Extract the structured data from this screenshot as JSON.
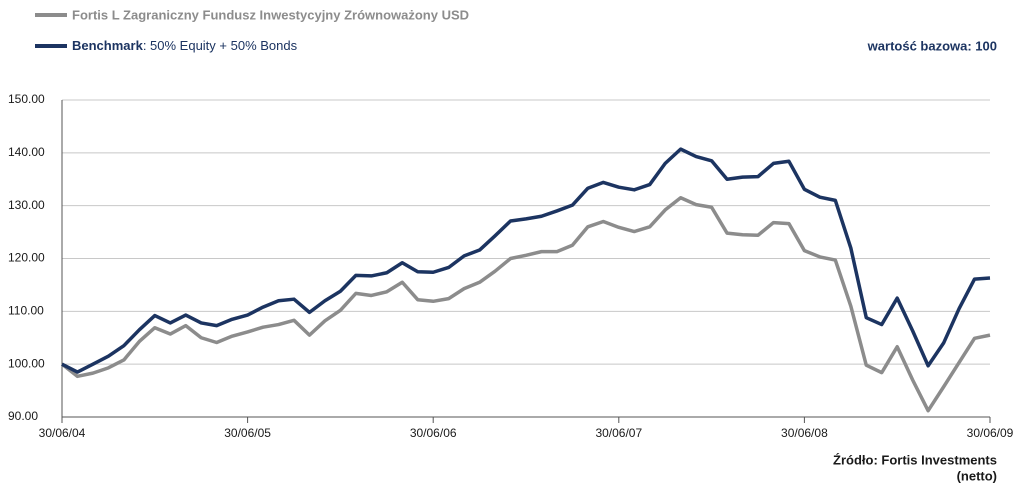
{
  "chart_data": {
    "type": "line",
    "annotation": "wartość bazowa: 100",
    "source": "Źródło: Fortis Investments",
    "source_note": "(netto)",
    "legend_note": ": 50% Equity + 50% Bonds",
    "categories": [
      "30/06/04",
      null,
      null,
      null,
      null,
      null,
      null,
      null,
      null,
      null,
      null,
      null,
      "30/06/05",
      null,
      null,
      null,
      null,
      null,
      null,
      null,
      null,
      null,
      null,
      null,
      "30/06/06",
      null,
      null,
      null,
      null,
      null,
      null,
      null,
      null,
      null,
      null,
      null,
      "30/06/07",
      null,
      null,
      null,
      null,
      null,
      null,
      null,
      null,
      null,
      null,
      null,
      "30/06/08",
      null,
      null,
      null,
      null,
      null,
      null,
      null,
      null,
      null,
      null,
      null,
      "30/06/09"
    ],
    "series": [
      {
        "name": "Fortis L Zagraniczny Fundusz Inwestycyjny Zrównoważony USD",
        "color": "#8c8c8c",
        "values": [
          100,
          97.7,
          98.3,
          99.3,
          100.8,
          104.3,
          106.9,
          105.7,
          107.3,
          105,
          104.1,
          105.3,
          106.1,
          107,
          107.5,
          108.3,
          105.5,
          108.2,
          110.2,
          113.4,
          113,
          113.7,
          115.5,
          112.2,
          111.9,
          112.4,
          114.3,
          115.5,
          117.6,
          120,
          120.6,
          121.3,
          121.3,
          122.5,
          126,
          127,
          125.9,
          125.1,
          126,
          129.2,
          131.5,
          130.2,
          129.7,
          124.8,
          124.5,
          124.4,
          126.8,
          126.6,
          121.5,
          120.3,
          119.7,
          111,
          99.8,
          98.4,
          103.3,
          97,
          91.2,
          95.7,
          100.3,
          104.9,
          105.5
        ]
      },
      {
        "name": "Benchmark",
        "color": "#1c3461",
        "values": [
          100,
          98.5,
          100,
          101.5,
          103.5,
          106.5,
          109.2,
          107.8,
          109.3,
          107.8,
          107.3,
          108.5,
          109.3,
          110.8,
          112,
          112.3,
          109.8,
          112,
          113.8,
          116.8,
          116.7,
          117.3,
          119.2,
          117.5,
          117.4,
          118.3,
          120.5,
          121.6,
          124.3,
          127.1,
          127.5,
          128,
          129,
          130.1,
          133.3,
          134.4,
          133.5,
          133,
          134,
          138,
          140.7,
          139.3,
          138.5,
          135,
          135.4,
          135.5,
          138,
          138.4,
          133.1,
          131.6,
          131,
          122,
          108.8,
          107.5,
          112.5,
          106.3,
          99.7,
          104,
          110.5,
          116.1,
          116.3
        ]
      }
    ],
    "ylim": [
      90,
      150
    ],
    "yticks": [
      {
        "value": 90,
        "label": "90.00"
      },
      {
        "value": 100,
        "label": "100.00"
      },
      {
        "value": 110,
        "label": "110.00"
      },
      {
        "value": 120,
        "label": "120.00"
      },
      {
        "value": 130,
        "label": "130.00"
      },
      {
        "value": 140,
        "label": "140.00"
      },
      {
        "value": 150,
        "label": "150.00"
      }
    ],
    "grid": true
  }
}
